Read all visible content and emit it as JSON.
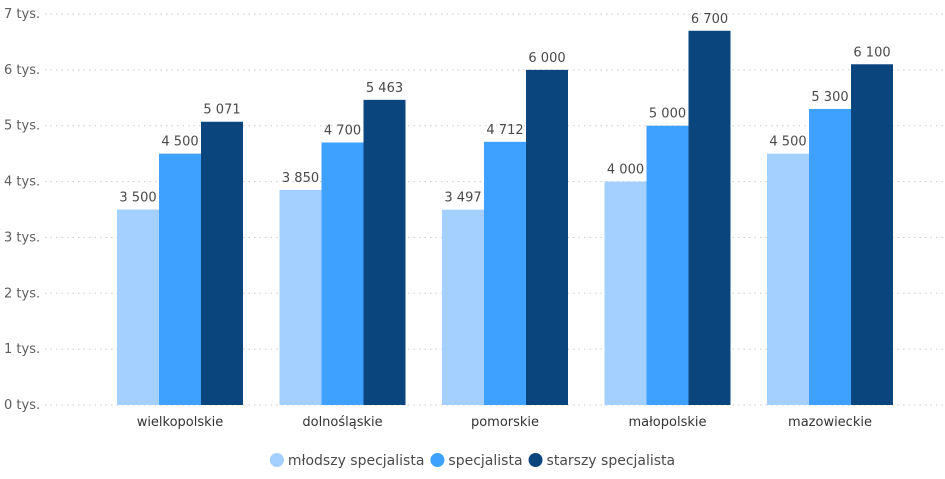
{
  "chart_data": {
    "type": "bar",
    "categories": [
      "wielkopolskie",
      "dolnośląskie",
      "pomorskie",
      "małopolskie",
      "mazowieckie"
    ],
    "series": [
      {
        "name": "młodszy specjalista",
        "color": "#a3d0ff",
        "values": [
          3500,
          3850,
          3497,
          4000,
          4500
        ],
        "labels": [
          "3 500",
          "3 850",
          "3 497",
          "4 000",
          "4 500"
        ]
      },
      {
        "name": "specjalista",
        "color": "#3fa1ff",
        "values": [
          4500,
          4700,
          4712,
          5000,
          5300
        ],
        "labels": [
          "4 500",
          "4 700",
          "4 712",
          "5 000",
          "5 300"
        ]
      },
      {
        "name": "starszy specjalista",
        "color": "#0b457d",
        "values": [
          5071,
          5463,
          6000,
          6700,
          6100
        ],
        "labels": [
          "5 071",
          "5 463",
          "6 000",
          "6 700",
          "6 100"
        ]
      }
    ],
    "ylim": [
      0,
      7000
    ],
    "yticks": [
      0,
      1000,
      2000,
      3000,
      4000,
      5000,
      6000,
      7000
    ],
    "ytick_labels": [
      "0 tys.",
      "1 tys.",
      "2 tys.",
      "3 tys.",
      "4 tys.",
      "5 tys.",
      "6 tys.",
      "7 tys."
    ],
    "title": "",
    "xlabel": "",
    "ylabel": "",
    "grid": true,
    "legend_position": "bottom-center"
  }
}
